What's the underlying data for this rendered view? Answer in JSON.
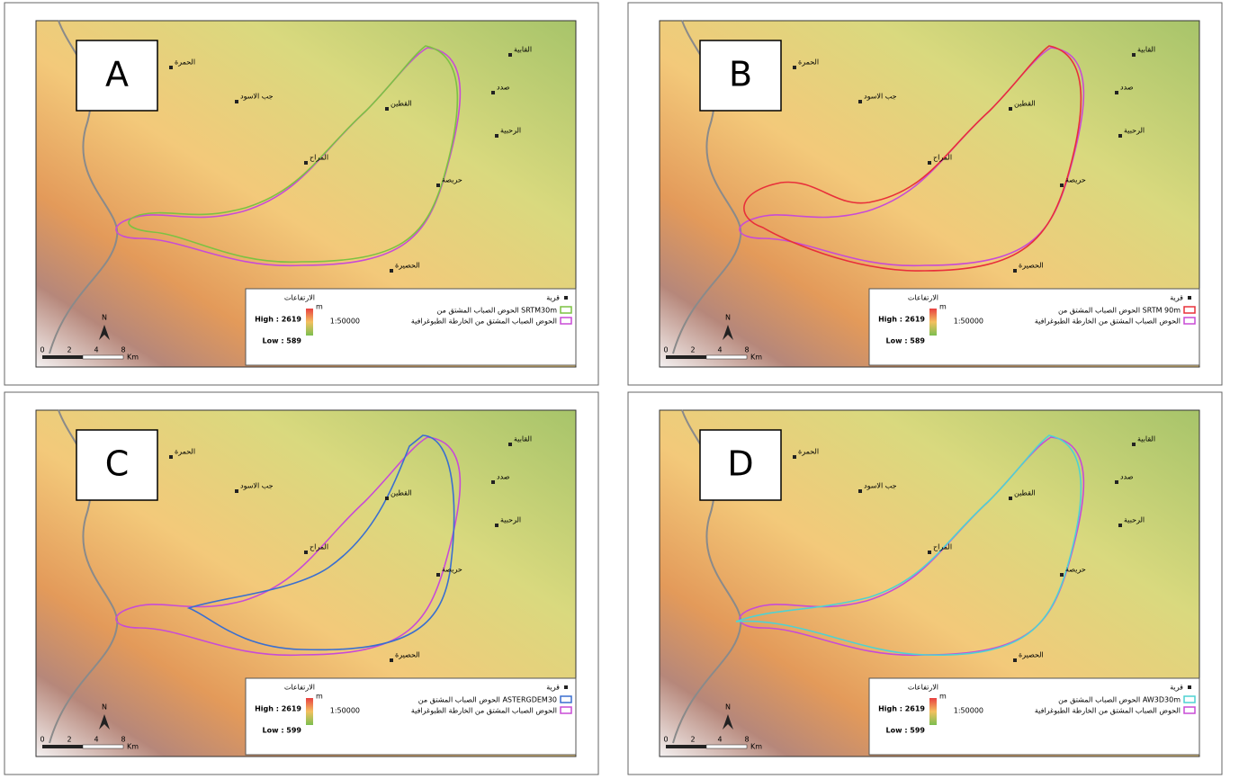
{
  "panels": [
    {
      "label": "A",
      "legend": {
        "village": "قرية",
        "elevation": "الارتفاعات",
        "unit": "m",
        "high": "High : 2619",
        "low": "Low : 589",
        "scale": "1:50000",
        "entries": [
          {
            "name": "الحوض الصباب المشتق من SRTM30m",
            "color": "#7cc242"
          },
          {
            "name": "الحوض الصباب المشتق من الخارطة الطبوغرافية",
            "color": "#c84bd6"
          }
        ]
      }
    },
    {
      "label": "B",
      "legend": {
        "village": "قرية",
        "elevation": "الارتفاعات",
        "unit": "m",
        "high": "High : 2619",
        "low": "Low : 589",
        "scale": "1:50000",
        "entries": [
          {
            "name": "الحوض الصباب المشتق من SRTM 90m",
            "color": "#e8303a"
          },
          {
            "name": "الحوض الصباب المشتق من الخارطة الطبوغرافية",
            "color": "#c84bd6"
          }
        ]
      }
    },
    {
      "label": "C",
      "legend": {
        "village": "قرية",
        "elevation": "الارتفاعات",
        "unit": "m",
        "high": "High : 2619",
        "low": "Low : 599",
        "scale": "1:50000",
        "entries": [
          {
            "name": "الحوض الصباب المشتق من ASTERGDEM30",
            "color": "#3a6fd0"
          },
          {
            "name": "الحوض الصباب المشتق من الخارطة الطبوغرافية",
            "color": "#c84bd6"
          }
        ]
      }
    },
    {
      "label": "D",
      "legend": {
        "village": "قرية",
        "elevation": "الارتفاعات",
        "unit": "m",
        "high": "High : 2619",
        "low": "Low : 599",
        "scale": "1:50000",
        "entries": [
          {
            "name": "الحوض الصباب المشتق من AW3D30m",
            "color": "#4fd2d2"
          },
          {
            "name": "الحوض الصباب المشتق من الخارطة الطبوغرافية",
            "color": "#c84bd6"
          }
        ]
      }
    }
  ],
  "villages": [
    "الحمرة",
    "جب الاسود",
    "القطين",
    "المراح",
    "حريصة",
    "الحصيرة",
    "القابية",
    "صدد",
    "الرحبية"
  ],
  "north": "N",
  "scale_unit": "Km",
  "scale_ticks": [
    "0",
    "2",
    "4",
    "8"
  ]
}
